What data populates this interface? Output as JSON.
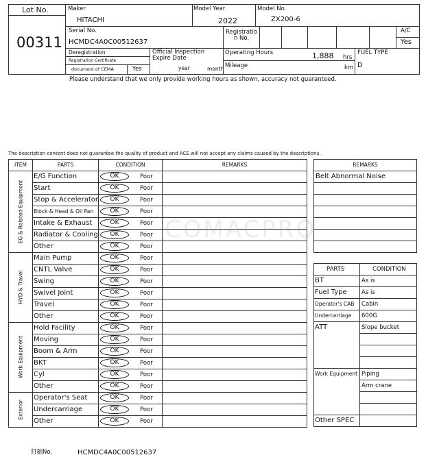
{
  "header": {
    "lot_label": "Lot No.",
    "lot_no": "00311",
    "maker_label": "Maker",
    "maker": "HITACHI",
    "model_year_label": "Model Year",
    "model_year": 2022,
    "model_no_label": "Model No.",
    "model_no": "ZX200-6",
    "serial_label": "Serial No.",
    "serial": "HCMDC4A0C00512637",
    "registration_label": "Registration No.",
    "ac_label": "A/C",
    "ac": "Yes",
    "deregistration_label": "Deregistration",
    "reg_cert_label": "Registration Certificate",
    "cema_label": "document of CEMA",
    "cema": "Yes",
    "inspection_label": "Official Inspection Expire Date",
    "year_label": "year",
    "month_label": "month",
    "hours_label": "Operating Hours",
    "hours": "1,888",
    "hours_unit": "hrs",
    "mileage_label": "Mileage",
    "km_unit": "km",
    "fuel_label": "FUEL TYPE",
    "fuel": "D"
  },
  "notice": "Please understand that we only provide working hours as shown, accuracy not guaranteed.",
  "disclaimer": "The description content does not guarantee the quality of product and ACE will not accept any claims caused by the descriptions.",
  "watermark": "COMACPRO",
  "inspection": {
    "headers": [
      "ITEM",
      "PARTS",
      "CONDITION",
      "REMARKS"
    ],
    "ok": "OK",
    "poor": "Poor",
    "groups": [
      {
        "name": "EG & Related Equipment",
        "parts": [
          "E/G Function",
          "Start",
          "Stop & Accelerator",
          "Block & Head & Oil Pan",
          "Intake & Exhaust",
          "Radiator & Cooling",
          "Other"
        ]
      },
      {
        "name": "HYD & Travel",
        "parts": [
          "Main Pump",
          "CNTL Valve",
          "Swing",
          "Swivel Joint",
          "Travel",
          "Other"
        ]
      },
      {
        "name": "Work Equipment",
        "parts": [
          "Hold Facility",
          "Moving",
          "Boom & Arm",
          "BKT",
          "Cyl",
          "Other"
        ]
      },
      {
        "name": "Exterior",
        "parts": [
          "Operator's Seat",
          "Undercarriage",
          "Other"
        ]
      }
    ]
  },
  "remarks": {
    "header": "REMARKS",
    "rows": [
      "Belt Abnormal Noise"
    ]
  },
  "spec": {
    "headers": [
      "PARTS",
      "CONDITION"
    ],
    "rows": [
      {
        "part": "BT",
        "conditions": [
          "As is"
        ]
      },
      {
        "part": "Fuel Type",
        "conditions": [
          "As is"
        ]
      },
      {
        "part": "Operator's CAB",
        "conditions": [
          "Cabin"
        ]
      },
      {
        "part": "Undercarriage",
        "conditions": [
          "600G"
        ]
      },
      {
        "part": "ATT",
        "conditions": [
          "Slope bucket"
        ]
      },
      {
        "part": "Work Equipment",
        "conditions": [
          "Piping",
          "Arm crane"
        ]
      },
      {
        "part": "Other SPEC",
        "conditions": []
      }
    ]
  },
  "footer": {
    "label": "打刻No.",
    "serial": "HCMDC4A0C00512637"
  }
}
